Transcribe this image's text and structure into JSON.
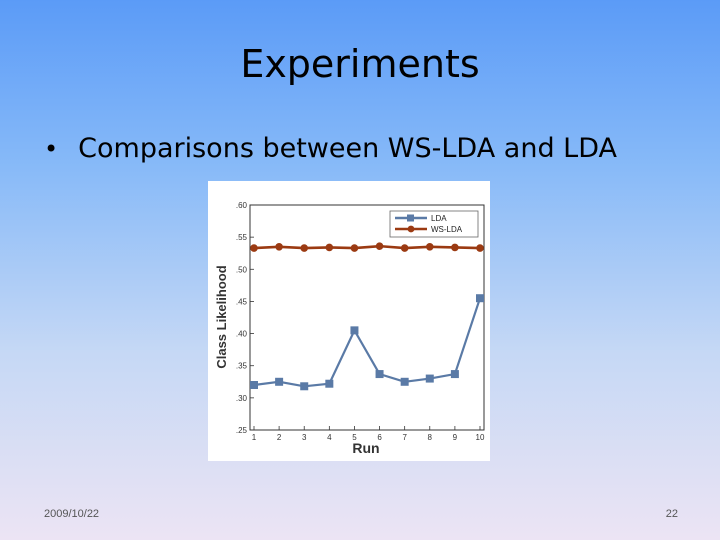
{
  "slide": {
    "title": "Experiments",
    "bullet": "Comparisons between WS-LDA and LDA",
    "bullet_symbol": "•",
    "date": "2009/10/22",
    "page_number": "22"
  },
  "colors": {
    "lda": "#5a7aa6",
    "wslda": "#9b3a12"
  },
  "chart_data": {
    "type": "line",
    "title": "",
    "xlabel": "Run",
    "ylabel": "Class Likelihood",
    "x": [
      1,
      2,
      3,
      4,
      5,
      6,
      7,
      8,
      9,
      10
    ],
    "ylim": [
      25,
      60
    ],
    "yticks": [
      25,
      30,
      35,
      40,
      45,
      50,
      55,
      60
    ],
    "ytick_labels": [
      ".25",
      ".30",
      ".35",
      ".40",
      ".45",
      ".50",
      ".55",
      ".60"
    ],
    "series": [
      {
        "name": "LDA",
        "values": [
          32,
          32.5,
          31.8,
          32.2,
          40.5,
          33.7,
          32.5,
          33,
          33.7,
          45.5
        ]
      },
      {
        "name": "WS-LDA",
        "values": [
          53.3,
          53.5,
          53.3,
          53.4,
          53.3,
          53.6,
          53.3,
          53.5,
          53.4,
          53.3
        ]
      }
    ],
    "legend": "top-right"
  }
}
